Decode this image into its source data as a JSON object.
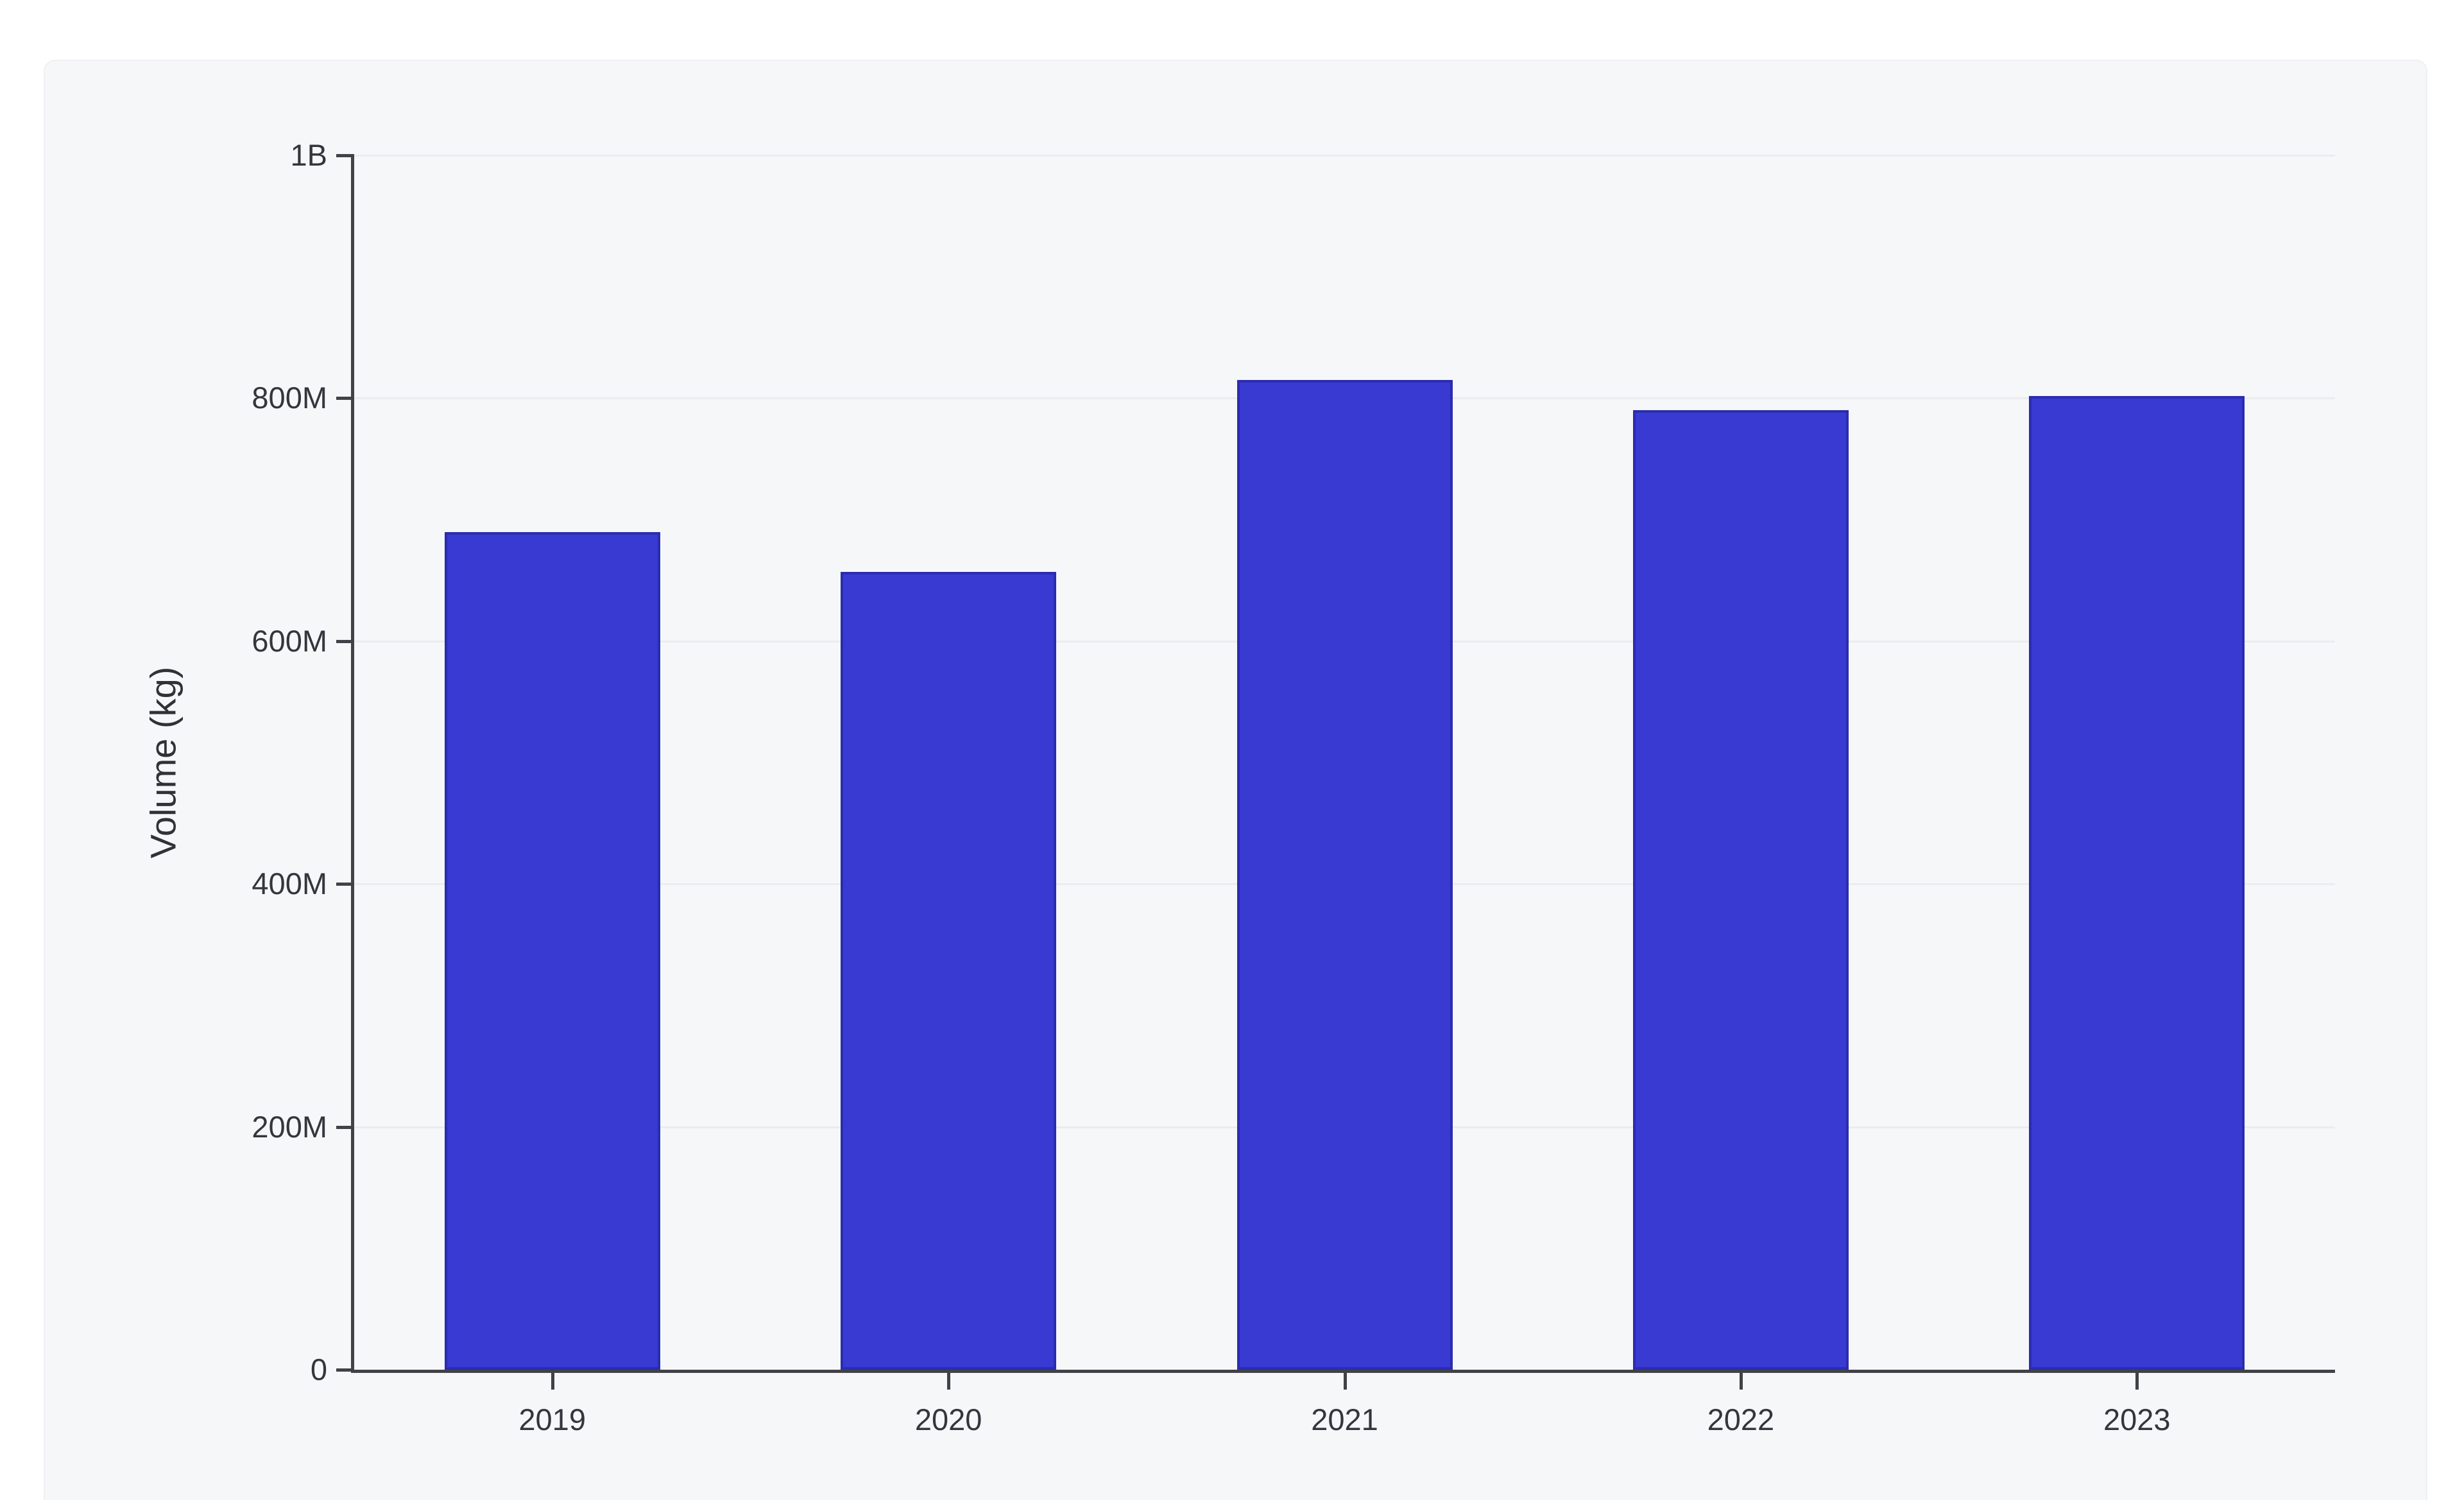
{
  "page": {
    "background_color": "#ffffff"
  },
  "card": {
    "background_color": "#f6f7f9",
    "border_color": "#eef0f3"
  },
  "chart_data": {
    "type": "bar",
    "categories": [
      "2019",
      "2020",
      "2021",
      "2022",
      "2023"
    ],
    "values": [
      690000000,
      657000000,
      815000000,
      790000000,
      802000000
    ],
    "title": "",
    "xlabel": "",
    "ylabel": "Volume (kg)",
    "ylim": [
      0,
      1000000000
    ],
    "yticks": [
      {
        "value": 0,
        "label": "0"
      },
      {
        "value": 200000000,
        "label": "200M"
      },
      {
        "value": 400000000,
        "label": "400M"
      },
      {
        "value": 600000000,
        "label": "600M"
      },
      {
        "value": 800000000,
        "label": "800M"
      },
      {
        "value": 1000000000,
        "label": "1B"
      }
    ],
    "grid": true,
    "legend": false,
    "bar_color": "#383ad2",
    "bar_border_color": "#2b2cb0",
    "axis_color": "#414146",
    "gridline_color": "#eaecef",
    "tick_label_color": "#33363c"
  }
}
